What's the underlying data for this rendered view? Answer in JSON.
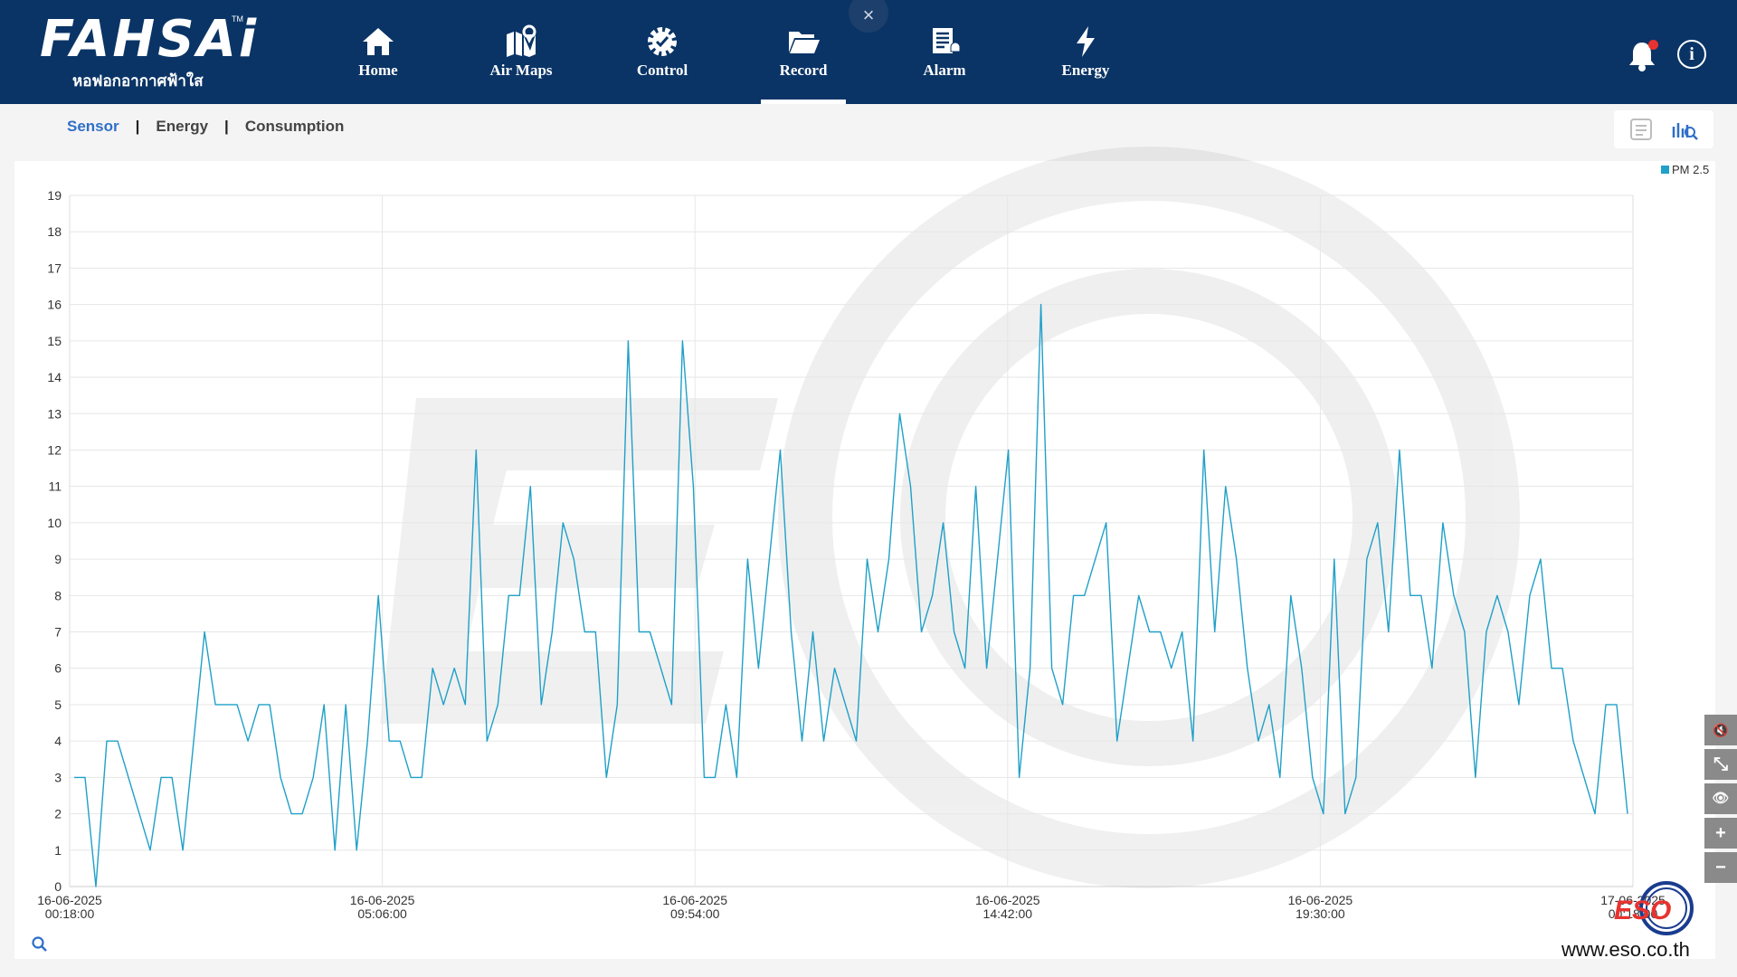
{
  "brand": {
    "logo_text": "FAHSAi",
    "tm": "TM",
    "tagline": "หอฟอกอากาศฟ้าใส"
  },
  "nav": [
    {
      "label": "Home",
      "icon": "home-icon"
    },
    {
      "label": "Air Maps",
      "icon": "map-pin-icon"
    },
    {
      "label": "Control",
      "icon": "gear-check-icon"
    },
    {
      "label": "Record",
      "icon": "folder-open-icon",
      "active": true
    },
    {
      "label": "Alarm",
      "icon": "alarm-list-icon"
    },
    {
      "label": "Energy",
      "icon": "lightning-icon"
    }
  ],
  "close_label": "×",
  "info_label": "i",
  "subnav": {
    "items": [
      "Sensor",
      "Energy",
      "Consumption"
    ],
    "active": "Sensor",
    "separator": "|"
  },
  "side_tools": [
    {
      "name": "mute-icon",
      "glyph": "🔇"
    },
    {
      "name": "collapse-icon",
      "glyph": "⤡"
    },
    {
      "name": "eye-icon",
      "glyph": "👁"
    },
    {
      "name": "zoom-in-icon",
      "glyph": "+"
    },
    {
      "name": "zoom-out-icon",
      "glyph": "−"
    }
  ],
  "watermark": {
    "url": "www.eso.co.th"
  },
  "colors": {
    "header_bg": "#0a3466",
    "line": "#1fa0c8",
    "active_tab": "#2f6fc7",
    "alert": "#e8322f"
  },
  "chart_data": {
    "type": "line",
    "title": "",
    "xlabel": "",
    "ylabel": "",
    "ylim": [
      0,
      19
    ],
    "yticks": [
      0,
      1,
      2,
      3,
      4,
      5,
      6,
      7,
      8,
      9,
      10,
      11,
      12,
      13,
      14,
      15,
      16,
      17,
      18,
      19
    ],
    "xtick_labels": [
      [
        "16-06-2025",
        "00:18:00"
      ],
      [
        "16-06-2025",
        "05:06:00"
      ],
      [
        "16-06-2025",
        "09:54:00"
      ],
      [
        "16-06-2025",
        "14:42:00"
      ],
      [
        "16-06-2025",
        "19:30:00"
      ],
      [
        "17-06-2025",
        "00:18:00"
      ]
    ],
    "legend": {
      "position": "top-right"
    },
    "grid": true,
    "series": [
      {
        "name": "PM 2.5",
        "values": [
          3,
          3,
          0,
          4,
          4,
          3,
          2,
          1,
          3,
          3,
          1,
          4,
          7,
          5,
          5,
          5,
          4,
          5,
          5,
          3,
          2,
          2,
          3,
          5,
          1,
          5,
          1,
          4,
          8,
          4,
          4,
          3,
          3,
          6,
          5,
          6,
          5,
          12,
          4,
          5,
          8,
          8,
          11,
          5,
          7,
          10,
          9,
          7,
          7,
          3,
          5,
          15,
          7,
          7,
          6,
          5,
          15,
          11,
          3,
          3,
          5,
          3,
          9,
          6,
          9,
          12,
          7,
          4,
          7,
          4,
          6,
          5,
          4,
          9,
          7,
          9,
          13,
          11,
          7,
          8,
          10,
          7,
          6,
          11,
          6,
          9,
          12,
          3,
          6,
          16,
          6,
          5,
          8,
          8,
          9,
          10,
          4,
          6,
          8,
          7,
          7,
          6,
          7,
          4,
          12,
          7,
          11,
          9,
          6,
          4,
          5,
          3,
          8,
          6,
          3,
          2,
          9,
          2,
          3,
          9,
          10,
          7,
          12,
          8,
          8,
          6,
          10,
          8,
          7,
          3,
          7,
          8,
          7,
          5,
          8,
          9,
          6,
          6,
          4,
          3,
          2,
          5,
          5,
          2
        ]
      }
    ]
  }
}
